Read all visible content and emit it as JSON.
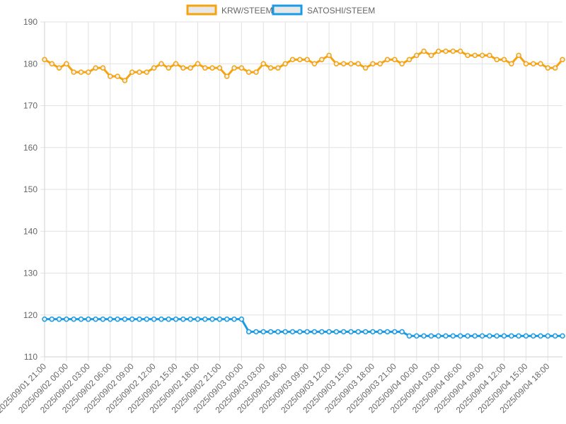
{
  "chart_data": {
    "type": "line",
    "categories": [
      "2025/09/01 21:00",
      null,
      null,
      "2025/09/02 00:00",
      null,
      null,
      "2025/09/02 03:00",
      null,
      null,
      "2025/09/02 06:00",
      null,
      null,
      "2025/09/02 09:00",
      null,
      null,
      "2025/09/02 12:00",
      null,
      null,
      "2025/09/02 15:00",
      null,
      null,
      "2025/09/02 18:00",
      null,
      null,
      "2025/09/02 21:00",
      null,
      null,
      "2025/09/03 00:00",
      null,
      null,
      "2025/09/03 03:00",
      null,
      null,
      "2025/09/03 06:00",
      null,
      null,
      "2025/09/03 09:00",
      null,
      null,
      "2025/09/03 12:00",
      null,
      null,
      "2025/09/03 15:00",
      null,
      null,
      "2025/09/03 18:00",
      null,
      null,
      "2025/09/03 21:00",
      null,
      null,
      "2025/09/04 00:00",
      null,
      null,
      "2025/09/04 03:00",
      null,
      null,
      "2025/09/04 06:00",
      null,
      null,
      "2025/09/04 09:00",
      null,
      null,
      "2025/09/04 12:00",
      null,
      null,
      "2025/09/04 15:00",
      null,
      null,
      "2025/09/04 18:00",
      null,
      null
    ],
    "series": [
      {
        "name": "KRW/STEEM",
        "color": "#f5a30f",
        "values": [
          181,
          180,
          179,
          180,
          178,
          178,
          178,
          179,
          179,
          177,
          177,
          176,
          178,
          178,
          178,
          179,
          180,
          179,
          180,
          179,
          179,
          180,
          179,
          179,
          179,
          177,
          179,
          179,
          178,
          178,
          180,
          179,
          179,
          180,
          181,
          181,
          181,
          180,
          181,
          182,
          180,
          180,
          180,
          180,
          179,
          180,
          180,
          181,
          181,
          180,
          181,
          182,
          183,
          182,
          183,
          183,
          183,
          183,
          182,
          182,
          182,
          182,
          181,
          181,
          180,
          182,
          180,
          180,
          180,
          179,
          179,
          181
        ]
      },
      {
        "name": "SATOSHI/STEEM",
        "color": "#1a9be6",
        "values": [
          119,
          119,
          119,
          119,
          119,
          119,
          119,
          119,
          119,
          119,
          119,
          119,
          119,
          119,
          119,
          119,
          119,
          119,
          119,
          119,
          119,
          119,
          119,
          119,
          119,
          119,
          119,
          119,
          116,
          116,
          116,
          116,
          116,
          116,
          116,
          116,
          116,
          116,
          116,
          116,
          116,
          116,
          116,
          116,
          116,
          116,
          116,
          116,
          116,
          116,
          115,
          115,
          115,
          115,
          115,
          115,
          115,
          115,
          115,
          115,
          115,
          115,
          115,
          115,
          115,
          115,
          115,
          115,
          115,
          115,
          115,
          115
        ]
      }
    ],
    "ylim": [
      110,
      190
    ],
    "yticks": [
      110,
      120,
      130,
      140,
      150,
      160,
      170,
      180,
      190
    ],
    "grid": true,
    "legend": "top"
  }
}
